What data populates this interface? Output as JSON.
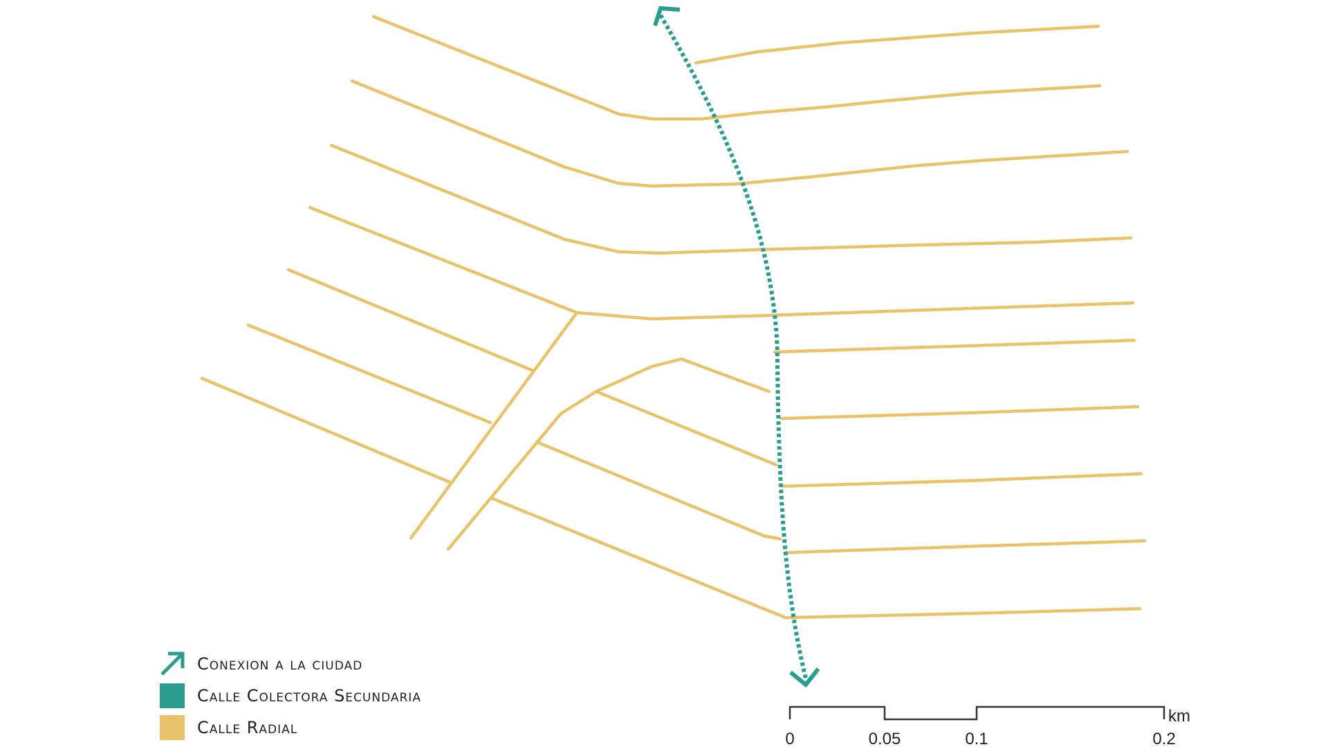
{
  "colors": {
    "radial": "#E8C36A",
    "collector": "#2A9D8F",
    "scale": "#333333",
    "background": "#FFFFFF"
  },
  "legend": {
    "items": [
      {
        "icon": "diagonal-arrow-icon",
        "label": "Conexion a la ciudad"
      },
      {
        "icon": "teal-square-swatch",
        "label": "Calle Colectora Secundaria"
      },
      {
        "icon": "yellow-square-swatch",
        "label": "Calle Radial"
      }
    ]
  },
  "scale_bar": {
    "unit": "km",
    "ticks": [
      "0",
      "0.05",
      "0.1",
      "0.2"
    ]
  }
}
